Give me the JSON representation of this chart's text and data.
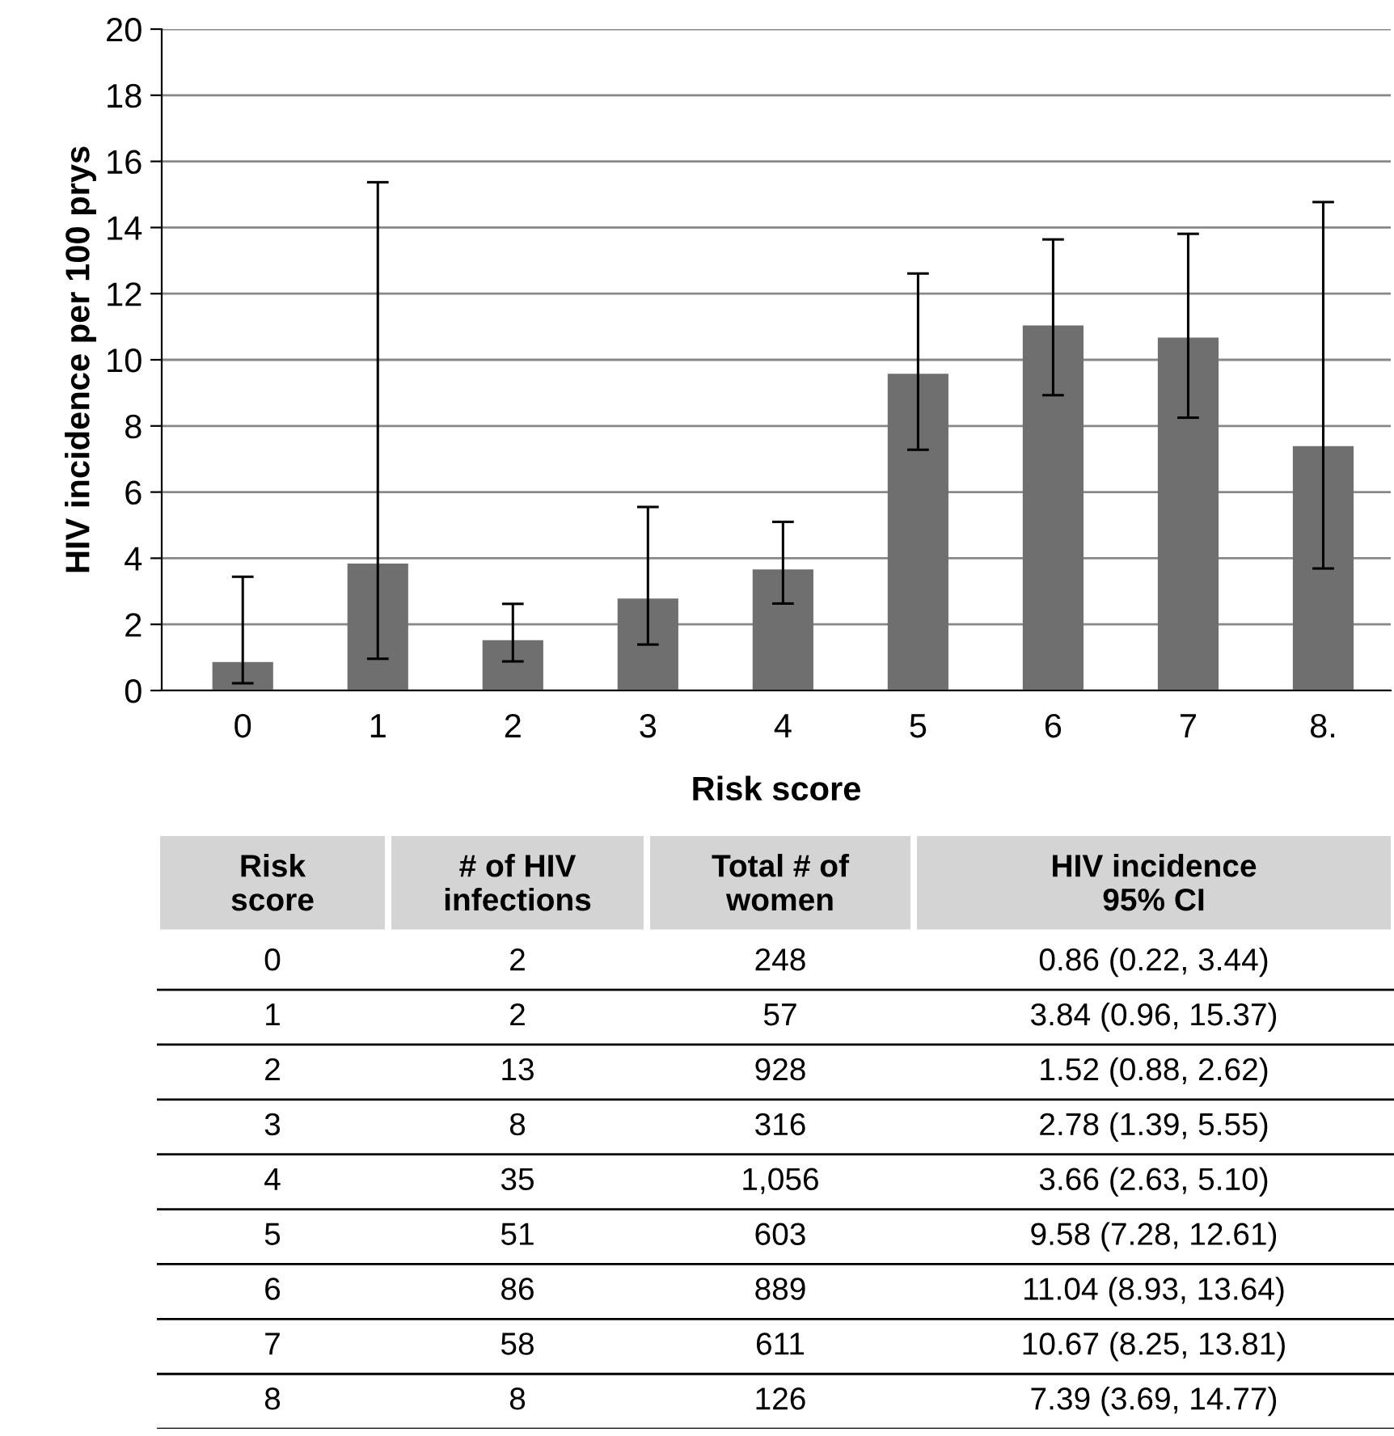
{
  "chart_data": {
    "type": "bar",
    "xlabel": "Risk score",
    "ylabel": "HIV incidence per 100 prys",
    "categories": [
      "0",
      "1",
      "2",
      "3",
      "4",
      "5",
      "6",
      "7",
      "8."
    ],
    "values": [
      0.86,
      3.84,
      1.52,
      2.78,
      3.66,
      9.58,
      11.04,
      10.67,
      7.39
    ],
    "errors": [
      [
        0.22,
        3.44
      ],
      [
        0.96,
        15.37
      ],
      [
        0.88,
        2.62
      ],
      [
        1.39,
        5.55
      ],
      [
        2.63,
        5.1
      ],
      [
        7.28,
        12.61
      ],
      [
        8.93,
        13.64
      ],
      [
        8.25,
        13.81
      ],
      [
        3.69,
        14.77
      ]
    ],
    "color": "#6f6f6f",
    "ylim": [
      0,
      20
    ],
    "yticks": [
      0,
      2,
      4,
      6,
      8,
      10,
      12,
      14,
      16,
      18,
      20
    ],
    "grid": "y",
    "annotations": [
      "Risk\nscore",
      "# of HIV\ninfections",
      "Total # of\nwomen",
      "HIV incidence\n95% CI",
      "0",
      "2",
      "248",
      "0.86 (0.22, 3.44)",
      "1",
      "2",
      "57",
      "3.84 (0.96, 15.37)",
      "2",
      "13",
      "928",
      "1.52 (0.88, 2.62)",
      "3",
      "8",
      "316",
      "2.78 (1.39, 5.55)",
      "4",
      "35",
      "1,056",
      "3.66 (2.63, 5.10)",
      "5",
      "51",
      "603",
      "9.58 (7.28, 12.61)",
      "6",
      "86",
      "889",
      "11.04 (8.93, 13.64)",
      "7",
      "58",
      "611",
      "10.67 (8.25, 13.81)",
      "8",
      "8",
      "126",
      "7.39 (3.69, 14.77)"
    ]
  }
}
